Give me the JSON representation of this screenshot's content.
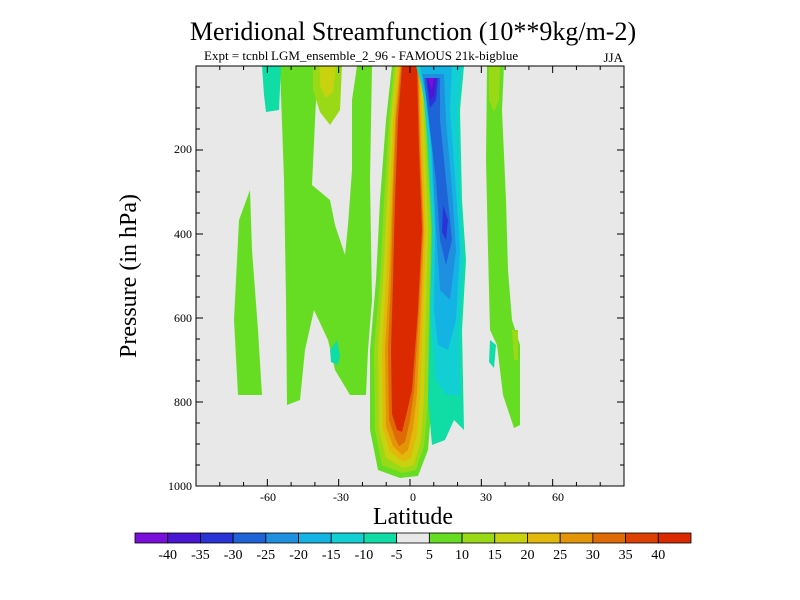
{
  "chart_data": {
    "type": "contour",
    "title": "Meridional Streamfunction (10**9kg/m-2)",
    "subtitle_left": "Expt = tcnbl",
    "subtitle_left_overlap": "LGM_ensemble_2_96 - FAMOUS 21k-bigblue",
    "subtitle_right": "JJA",
    "xlabel": "Latitude",
    "ylabel": "Pressure (in hPa)",
    "xlim": [
      -90,
      90
    ],
    "ylim": [
      1000,
      0
    ],
    "x_ticks": [
      "-60",
      "-30",
      "0",
      "30",
      "60"
    ],
    "x_tick_values": [
      -60,
      -30,
      0,
      30,
      60
    ],
    "y_ticks": [
      "200",
      "400",
      "600",
      "800",
      "1000"
    ],
    "y_tick_values": [
      200,
      400,
      600,
      800,
      1000
    ],
    "colorbar": {
      "labels": [
        "-40",
        "-35",
        "-30",
        "-25",
        "-20",
        "-15",
        "-10",
        "-5",
        "5",
        "10",
        "15",
        "20",
        "25",
        "30",
        "35",
        "40"
      ],
      "colors": [
        "#7a0fdc",
        "#4b15d6",
        "#2a34d6",
        "#1f63d9",
        "#1f8fe0",
        "#13b4e4",
        "#12cfd3",
        "#10dca6",
        "#e8e8e8",
        "#66dd22",
        "#99d916",
        "#c8d20f",
        "#e2b90a",
        "#e39507",
        "#e06a05",
        "#dd4003",
        "#dc2a00"
      ]
    }
  }
}
